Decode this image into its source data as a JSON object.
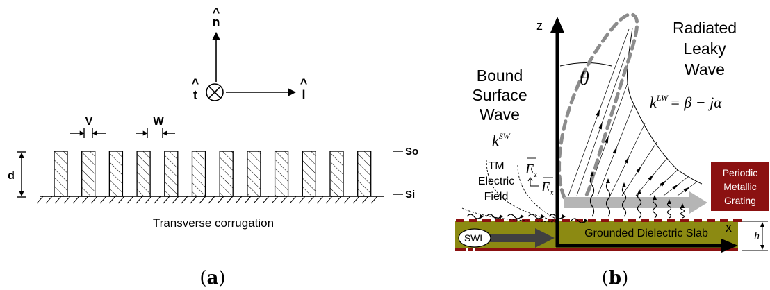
{
  "panel_a": {
    "caption_open": "(",
    "caption_letter": "a",
    "caption_close": ")",
    "axis_n": "n",
    "axis_t": "t",
    "axis_l": "l",
    "hat": "^",
    "label_v": "V",
    "label_w": "W",
    "label_d": "d",
    "label_so": "So",
    "label_si": "Si",
    "corrugation_label": "Transverse corrugation",
    "ridge_count": 12
  },
  "panel_b": {
    "caption_open": "(",
    "caption_letter": "b",
    "caption_close": ")",
    "axis_z": "z",
    "axis_x": "x",
    "theta": "θ",
    "bound_wave_lines": [
      "Bound",
      "Surface",
      "Wave"
    ],
    "k_sw_base": "k",
    "k_sw_sup": "SW",
    "radiated_wave_lines": [
      "Radiated",
      "Leaky",
      "Wave"
    ],
    "k_lw_base": "k",
    "k_lw_sup": "LW",
    "k_lw_rhs": "= β − jα",
    "tm_field_lines": [
      "TM",
      "Electric",
      "Field"
    ],
    "ez_base": "E",
    "ez_sub": "z",
    "ex_base": "E",
    "ex_sub": "x",
    "grating_lines": [
      "Periodic",
      "Metallic",
      "Grating"
    ],
    "slab_label": "Grounded Dielectric Slab",
    "swl_label": "SWL",
    "h_label": "h",
    "colors": {
      "slab": "#8c8a12",
      "grating": "#8b1111",
      "leaky_arrow": "#b5b5b5",
      "ellipse": "#8c8c8c",
      "swl_arrow": "#404040"
    }
  }
}
